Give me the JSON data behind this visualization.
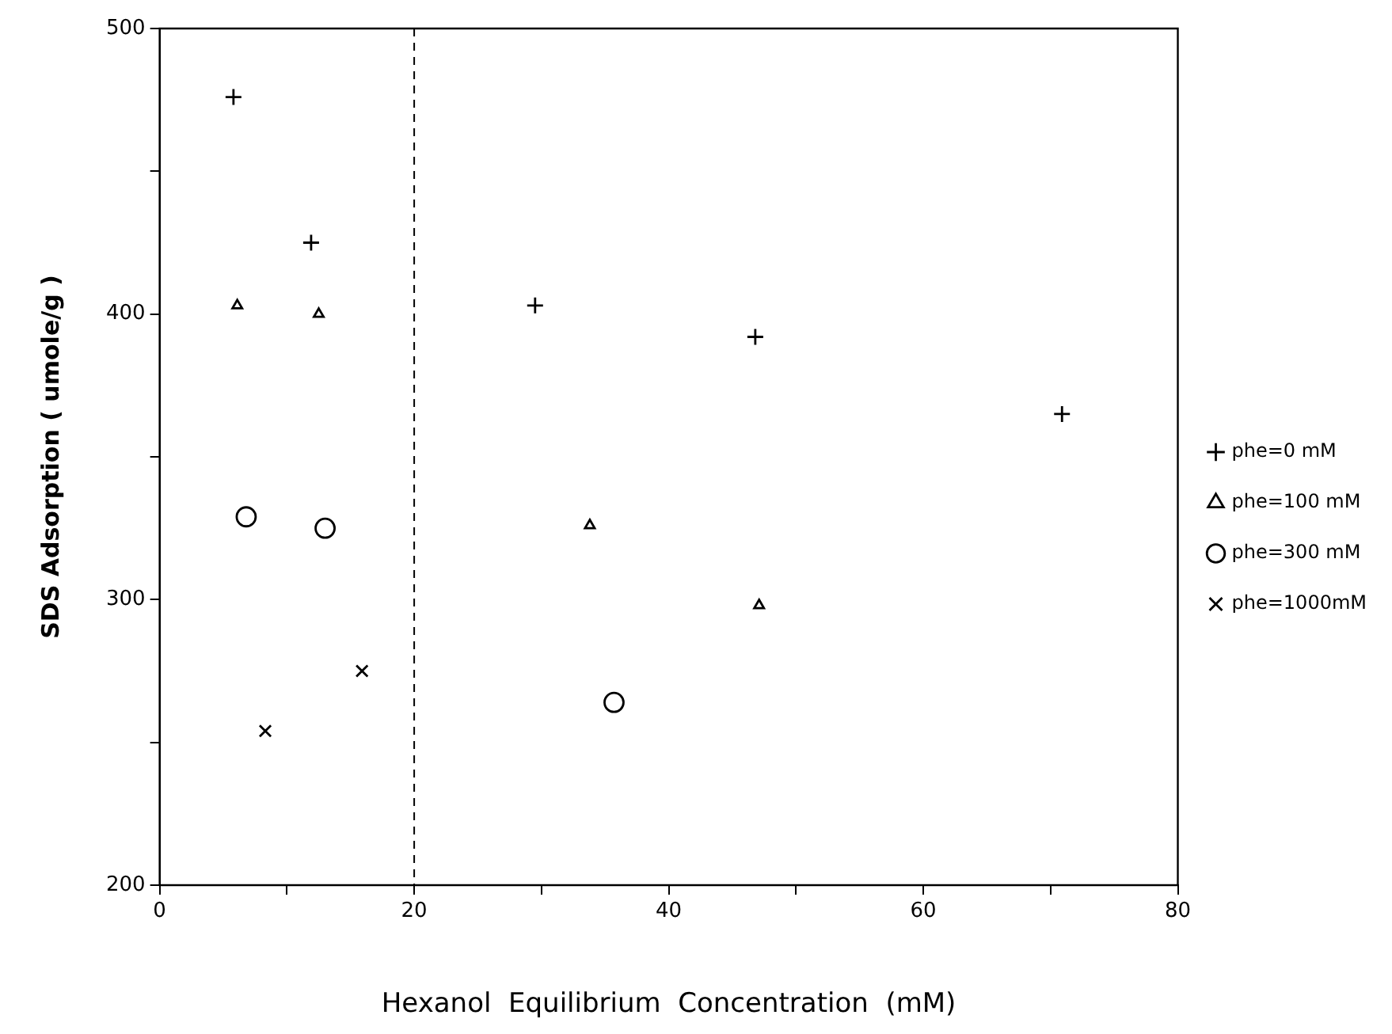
{
  "chart_data": {
    "type": "scatter",
    "xlabel": "Hexanol  Equilibrium  Concentration  (mM)",
    "ylabel": "SDS Adsorption ( umole/g )",
    "xlim": [
      0,
      80
    ],
    "xticks": [
      0,
      {
        "value": 10,
        "label": null
      },
      20,
      {
        "value": 30,
        "label": null
      },
      40,
      {
        "value": 50,
        "label": null
      },
      60,
      {
        "value": 70,
        "label": null
      },
      80
    ],
    "ylim": [
      200,
      500
    ],
    "yticks": [
      200,
      {
        "value": 250,
        "label": null
      },
      300,
      {
        "value": 350,
        "label": null
      },
      400,
      {
        "value": 450,
        "label": null
      },
      500
    ],
    "grid": false,
    "legend": "right",
    "ref_lines": [
      {
        "axis": "x",
        "value": 20,
        "line_style": "dashed",
        "color": "#000000"
      }
    ],
    "series": [
      {
        "name": "phe=0 mM",
        "color": "#000000",
        "marker": "cross",
        "x": [
          5.8,
          11.9,
          29.5,
          46.8,
          70.9
        ],
        "values": [
          476,
          425,
          403,
          392,
          365
        ]
      },
      {
        "name": "phe=100 mM",
        "color": "#000000",
        "marker": "triangle",
        "x": [
          6.1,
          12.5,
          33.8,
          47.1
        ],
        "values": [
          403,
          400,
          326,
          298
        ]
      },
      {
        "name": "phe=300 mM",
        "color": "#000000",
        "marker": "circle",
        "x": [
          6.8,
          13.0,
          35.7
        ],
        "values": [
          329,
          325,
          264
        ]
      },
      {
        "name": "phe=1000mM",
        "color": "#000000",
        "marker": "x",
        "x": [
          8.3,
          15.9
        ],
        "values": [
          254,
          275
        ]
      }
    ]
  }
}
